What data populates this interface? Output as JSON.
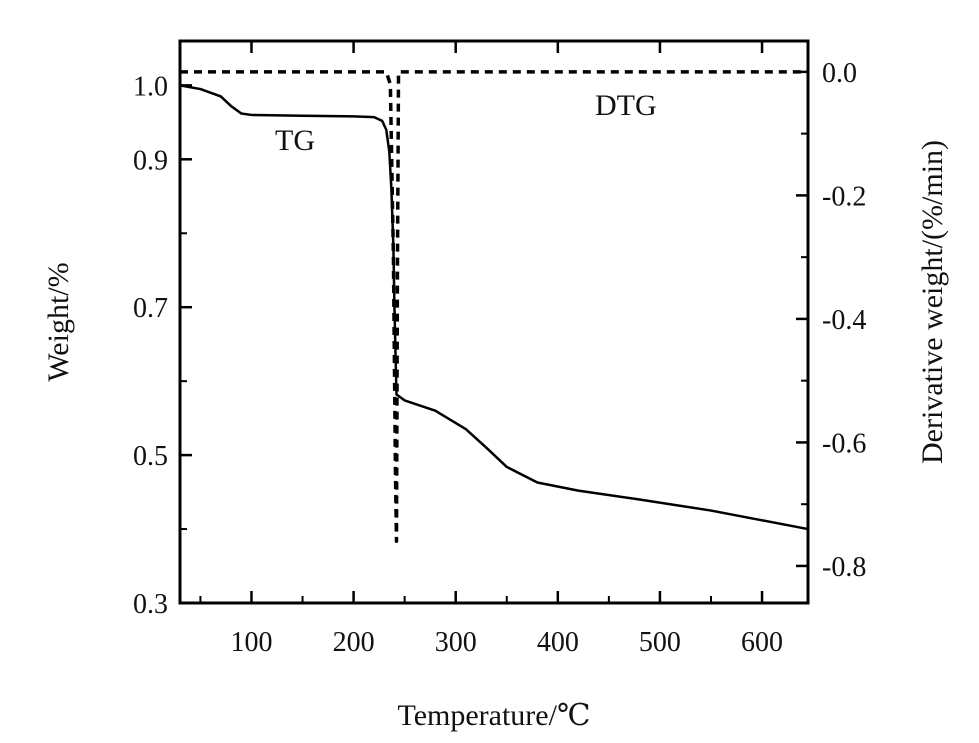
{
  "chart_data": {
    "type": "line",
    "title": "",
    "xlabel": "Temperature/℃",
    "ylabel_left": "Weight/%",
    "ylabel_right": "Derivative weight/(%/min)",
    "xlim": [
      30,
      645
    ],
    "ylim_left": [
      0.3,
      1.06
    ],
    "ylim_right": [
      -0.86,
      0.05
    ],
    "x_ticks": [
      100,
      200,
      300,
      400,
      500,
      600
    ],
    "x_tick_labels": [
      "100",
      "200",
      "300",
      "400",
      "500",
      "600"
    ],
    "y_left_ticks": [
      1.0,
      0.9,
      0.7,
      0.5,
      0.3
    ],
    "y_left_tick_labels": [
      "1.0",
      "0.9",
      "0.7",
      "0.5",
      "0.3"
    ],
    "y_right_ticks": [
      0.0,
      -0.2,
      -0.4,
      -0.6,
      -0.8
    ],
    "y_right_tick_labels": [
      "0.0",
      "-0.2",
      "-0.4",
      "-0.6",
      "-0.8"
    ],
    "grid": false,
    "series": [
      {
        "name": "TG",
        "axis": "left",
        "style": "solid",
        "x": [
          30,
          50,
          70,
          80,
          90,
          100,
          150,
          200,
          220,
          228,
          232,
          235,
          237,
          239,
          240,
          242,
          250,
          280,
          310,
          330,
          350,
          380,
          420,
          480,
          550,
          645
        ],
        "y": [
          1.0,
          0.995,
          0.985,
          0.972,
          0.962,
          0.96,
          0.959,
          0.958,
          0.957,
          0.952,
          0.94,
          0.91,
          0.86,
          0.78,
          0.7,
          0.582,
          0.574,
          0.56,
          0.535,
          0.51,
          0.484,
          0.463,
          0.452,
          0.44,
          0.425,
          0.4
        ]
      },
      {
        "name": "DTG",
        "axis": "right",
        "style": "dashed",
        "x": [
          30,
          200,
          232,
          236,
          239,
          241,
          242,
          243,
          244,
          250,
          300,
          645
        ],
        "y": [
          0.0,
          0.0,
          0.0,
          -0.02,
          -0.3,
          -0.65,
          -0.76,
          -0.3,
          0.0,
          0.0,
          0.0,
          0.0
        ]
      }
    ],
    "annotations": [
      {
        "text": "TG",
        "series": "TG"
      },
      {
        "text": "DTG",
        "series": "DTG"
      }
    ],
    "colors": {
      "line": "#000000",
      "axis": "#000000"
    }
  }
}
